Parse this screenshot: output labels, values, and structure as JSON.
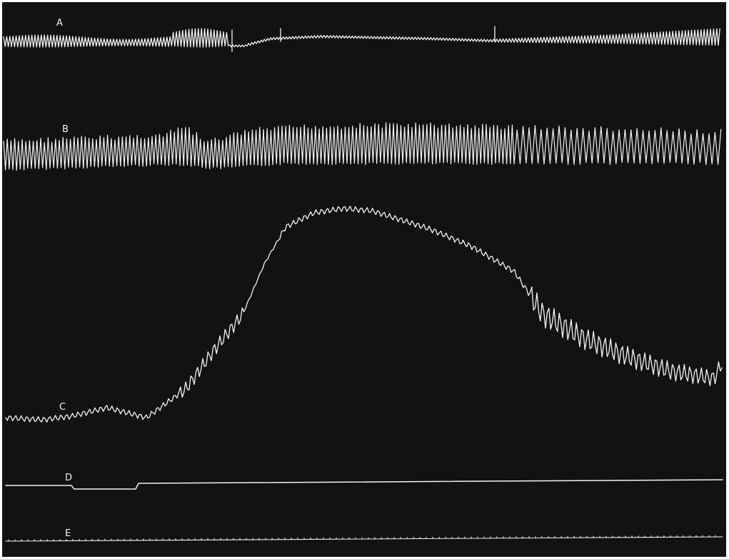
{
  "traces": [
    {
      "id": "A",
      "label": "A"
    },
    {
      "id": "B",
      "label": "B"
    },
    {
      "id": "C",
      "label": "C"
    },
    {
      "id": "D",
      "label": "D"
    },
    {
      "id": "E",
      "label": "E"
    }
  ],
  "colors": {
    "background": "#111213",
    "trace": "#f4f4f4",
    "border": "#ffffff"
  }
}
